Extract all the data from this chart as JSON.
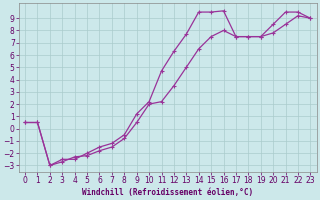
{
  "bg_color": "#cce8ea",
  "grid_color": "#aacccc",
  "line_color": "#993399",
  "xlabel": "Windchill (Refroidissement éolien,°C)",
  "curve1_x": [
    0,
    1,
    2,
    3,
    4,
    5,
    6,
    7,
    8,
    9,
    10,
    11,
    12,
    13,
    14,
    15,
    16,
    17,
    18,
    19,
    20,
    21,
    22,
    23
  ],
  "curve1_y": [
    0.5,
    0.5,
    -3.0,
    -2.5,
    -2.5,
    -2.0,
    -1.5,
    -1.2,
    -0.5,
    1.2,
    2.2,
    4.7,
    6.3,
    7.7,
    9.5,
    9.5,
    9.6,
    7.5,
    7.5,
    7.5,
    8.5,
    9.5,
    9.5,
    9.0
  ],
  "curve2_x": [
    0,
    1,
    2,
    3,
    4,
    5,
    6,
    7,
    8,
    9,
    10,
    11,
    12,
    13,
    14,
    15,
    16,
    17,
    18,
    19,
    20,
    21,
    22,
    23
  ],
  "curve2_y": [
    0.5,
    0.5,
    -3.0,
    -2.7,
    -2.3,
    -2.2,
    -1.8,
    -1.5,
    -0.8,
    0.5,
    2.0,
    2.2,
    3.5,
    5.0,
    6.5,
    7.5,
    8.0,
    7.5,
    7.5,
    7.5,
    7.8,
    8.5,
    9.2,
    9.0
  ],
  "ylim": [
    -3.5,
    10.2
  ],
  "xlim": [
    -0.5,
    23.5
  ],
  "yticks": [
    -3,
    -2,
    -1,
    0,
    1,
    2,
    3,
    4,
    5,
    6,
    7,
    8,
    9
  ],
  "xticks": [
    0,
    1,
    2,
    3,
    4,
    5,
    6,
    7,
    8,
    9,
    10,
    11,
    12,
    13,
    14,
    15,
    16,
    17,
    18,
    19,
    20,
    21,
    22,
    23
  ],
  "font_color": "#660066",
  "tick_fontsize": 5.5,
  "xlabel_fontsize": 5.5
}
